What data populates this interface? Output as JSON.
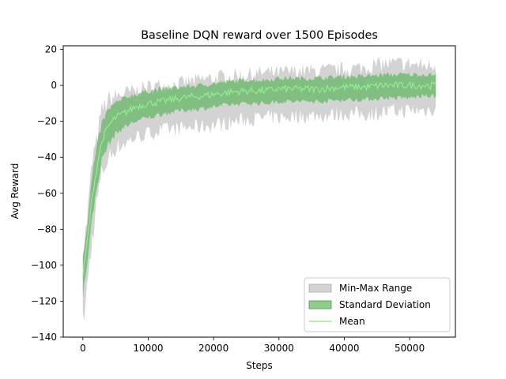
{
  "chart_data": {
    "type": "area",
    "title": "Baseline DQN reward over 1500 Episodes",
    "xlabel": "Steps",
    "ylabel": "Avg Reward",
    "xlim": [
      -3000,
      57000
    ],
    "ylim": [
      -140,
      22
    ],
    "xticks": [
      0,
      10000,
      20000,
      30000,
      40000,
      50000
    ],
    "xtick_labels": [
      "0",
      "10000",
      "20000",
      "30000",
      "40000",
      "50000"
    ],
    "yticks": [
      -140,
      -120,
      -100,
      -80,
      -60,
      -40,
      -20,
      0,
      20
    ],
    "ytick_labels": [
      "−140",
      "−120",
      "−100",
      "−80",
      "−60",
      "−40",
      "−20",
      "0",
      "20"
    ],
    "grid": false,
    "legend_position": "lower-right",
    "series": [
      {
        "name": "Min-Max Range",
        "kind": "band",
        "color": "#c8c8c8",
        "x": [
          0,
          500,
          1000,
          1500,
          2000,
          2500,
          3000,
          4000,
          5000,
          6000,
          7000,
          8000,
          10000,
          12000,
          15000,
          18000,
          20000,
          22000,
          25000,
          28000,
          30000,
          33000,
          36000,
          40000,
          43000,
          46000,
          50000,
          52000,
          54000
        ],
        "lower": [
          -133,
          -118,
          -100,
          -84,
          -68,
          -57,
          -48,
          -40,
          -35,
          -33,
          -31,
          -29,
          -27,
          -25,
          -24,
          -23,
          -22,
          -21,
          -19,
          -18,
          -18,
          -17,
          -17,
          -16,
          -16,
          -15,
          -14,
          -14,
          -13
        ],
        "upper": [
          -90,
          -80,
          -60,
          -40,
          -34,
          -22,
          -13,
          -8,
          -6,
          -5,
          -4,
          -3,
          -1,
          0,
          1,
          3,
          4,
          5,
          6,
          7,
          7,
          8,
          8,
          9,
          10,
          12,
          12,
          11,
          11
        ]
      },
      {
        "name": "Standard Deviation",
        "kind": "band",
        "color": "#5fb35f",
        "x": [
          0,
          500,
          1000,
          1500,
          2000,
          2500,
          3000,
          4000,
          5000,
          6000,
          7000,
          8000,
          10000,
          12000,
          15000,
          18000,
          20000,
          22000,
          25000,
          28000,
          30000,
          33000,
          36000,
          40000,
          43000,
          46000,
          50000,
          52000,
          54000
        ],
        "lower": [
          -118,
          -103,
          -87,
          -72,
          -60,
          -49,
          -40,
          -32,
          -27,
          -24,
          -22,
          -20,
          -18,
          -16,
          -14,
          -13,
          -12,
          -11,
          -10,
          -10,
          -9,
          -9,
          -9,
          -8,
          -8,
          -7,
          -7,
          -6,
          -6
        ],
        "upper": [
          -94,
          -82,
          -66,
          -48,
          -38,
          -28,
          -20,
          -13,
          -10,
          -8,
          -6,
          -5,
          -3,
          -2,
          -1,
          0,
          1,
          2,
          3,
          3,
          4,
          4,
          4,
          5,
          5,
          6,
          6,
          6,
          6
        ]
      },
      {
        "name": "Mean",
        "kind": "line",
        "color": "#90ee90",
        "x": [
          0,
          500,
          1000,
          1500,
          2000,
          2500,
          3000,
          4000,
          5000,
          6000,
          7000,
          8000,
          10000,
          12000,
          15000,
          18000,
          20000,
          22000,
          25000,
          28000,
          30000,
          33000,
          36000,
          40000,
          43000,
          46000,
          50000,
          52000,
          54000
        ],
        "values": [
          -106,
          -92,
          -76,
          -60,
          -49,
          -38,
          -30,
          -22,
          -18,
          -16,
          -14,
          -12,
          -10,
          -9,
          -7,
          -6,
          -5,
          -4,
          -3,
          -3,
          -2,
          -2,
          -2,
          -1,
          -1,
          0,
          0,
          0,
          0
        ]
      }
    ],
    "legend": [
      {
        "label": "Min-Max Range",
        "swatch": "band",
        "color": "#c8c8c8"
      },
      {
        "label": "Standard Deviation",
        "swatch": "band",
        "color": "#5fb35f"
      },
      {
        "label": "Mean",
        "swatch": "line",
        "color": "#90ee90"
      }
    ]
  }
}
